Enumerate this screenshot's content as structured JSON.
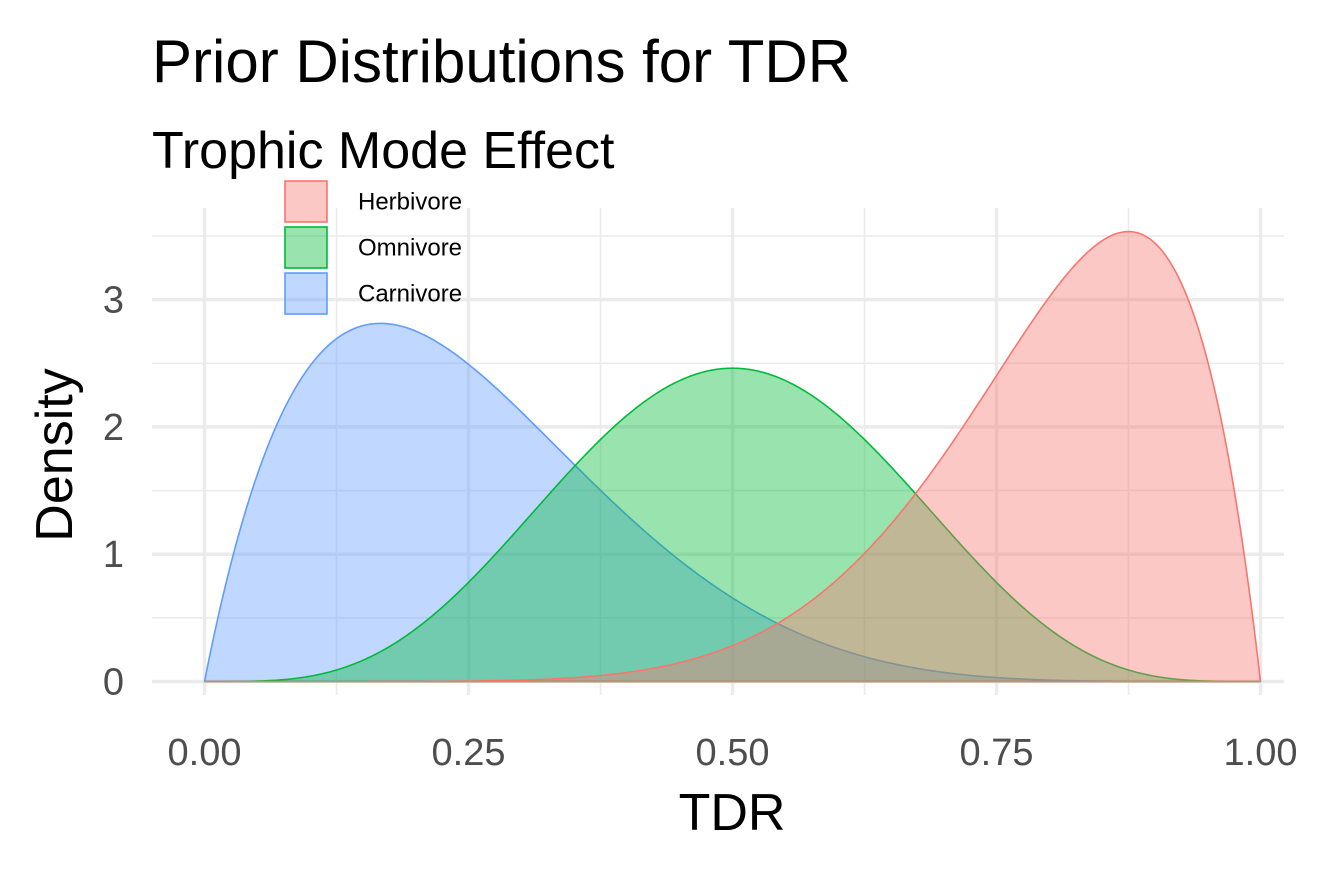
{
  "chart_data": {
    "type": "area",
    "title": "Prior Distributions for TDR",
    "subtitle": "Trophic Mode Effect",
    "xlabel": "TDR",
    "ylabel": "Density",
    "xlim": [
      0,
      1
    ],
    "ylim": [
      0,
      3.55
    ],
    "x_ticks": [
      0,
      0.25,
      0.5,
      0.75,
      1
    ],
    "x_tick_labels": [
      "0.00",
      "0.25",
      "0.50",
      "0.75",
      "1.00"
    ],
    "y_ticks": [
      0,
      1,
      2,
      3
    ],
    "y_tick_labels": [
      "0",
      "1",
      "2",
      "3"
    ],
    "grid": true,
    "legend_position": "top-left",
    "series": [
      {
        "name": "Herbivore",
        "distribution": "beta",
        "alpha": 8,
        "beta": 2,
        "peak_x": 0.875,
        "peak_y": 3.54,
        "fill": "#F8766D",
        "stroke": "#F8766D"
      },
      {
        "name": "Omnivore",
        "distribution": "beta",
        "alpha": 5,
        "beta": 5,
        "peak_x": 0.5,
        "peak_y": 2.46,
        "fill": "#00BA38",
        "stroke": "#00BA38"
      },
      {
        "name": "Carnivore",
        "distribution": "beta",
        "alpha": 2,
        "beta": 6,
        "peak_x": 0.1667,
        "peak_y": 2.82,
        "fill": "#619CFF",
        "stroke": "#619CFF"
      }
    ]
  }
}
